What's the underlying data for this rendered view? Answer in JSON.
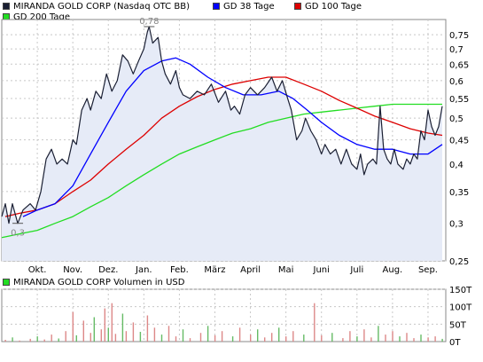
{
  "chart_data": [
    {
      "type": "line",
      "scale": "log",
      "ylim": [
        0.25,
        0.78
      ],
      "y_ticks": [
        0.25,
        0.3,
        0.35,
        0.4,
        0.45,
        0.5,
        0.55,
        0.6,
        0.65,
        0.7,
        0.75
      ],
      "y_tick_labels": [
        "0,25",
        "0,3",
        "0,35",
        "0,4",
        "0,45",
        "0,5",
        "0,55",
        "0,6",
        "0,65",
        "0,7",
        "0,75"
      ],
      "x_tick_labels": [
        "Okt.",
        "Nov.",
        "Dez.",
        "Jan.",
        "Feb.",
        "März",
        "April",
        "Mai",
        "Juni",
        "Juli",
        "Aug.",
        "Sep."
      ],
      "x_tick_months": [
        1,
        2,
        3,
        4,
        5,
        6,
        7,
        8,
        9,
        10,
        11,
        12
      ],
      "x_range_months": [
        0,
        12.5
      ],
      "annotations": [
        {
          "label": "0,78",
          "x_month": 4.15,
          "value": 0.78
        },
        {
          "label": "0,3",
          "x_month": 0.45,
          "value": 0.3
        }
      ],
      "series": [
        {
          "name": "MIRANDA GOLD CORP (Nasdaq OTC BB)",
          "color": "#1a1f33",
          "points": [
            [
              0,
              0.31
            ],
            [
              0.1,
              0.33
            ],
            [
              0.2,
              0.3
            ],
            [
              0.3,
              0.33
            ],
            [
              0.45,
              0.3
            ],
            [
              0.6,
              0.32
            ],
            [
              0.8,
              0.33
            ],
            [
              0.95,
              0.32
            ],
            [
              1.1,
              0.35
            ],
            [
              1.25,
              0.41
            ],
            [
              1.4,
              0.43
            ],
            [
              1.55,
              0.4
            ],
            [
              1.7,
              0.41
            ],
            [
              1.85,
              0.4
            ],
            [
              2.0,
              0.45
            ],
            [
              2.1,
              0.44
            ],
            [
              2.25,
              0.52
            ],
            [
              2.4,
              0.55
            ],
            [
              2.5,
              0.52
            ],
            [
              2.65,
              0.57
            ],
            [
              2.8,
              0.55
            ],
            [
              2.95,
              0.62
            ],
            [
              3.1,
              0.57
            ],
            [
              3.25,
              0.6
            ],
            [
              3.4,
              0.68
            ],
            [
              3.55,
              0.66
            ],
            [
              3.7,
              0.62
            ],
            [
              3.85,
              0.66
            ],
            [
              4.0,
              0.7
            ],
            [
              4.1,
              0.76
            ],
            [
              4.15,
              0.78
            ],
            [
              4.25,
              0.72
            ],
            [
              4.4,
              0.74
            ],
            [
              4.5,
              0.66
            ],
            [
              4.6,
              0.62
            ],
            [
              4.75,
              0.59
            ],
            [
              4.9,
              0.63
            ],
            [
              5.0,
              0.58
            ],
            [
              5.1,
              0.56
            ],
            [
              5.3,
              0.55
            ],
            [
              5.5,
              0.57
            ],
            [
              5.7,
              0.56
            ],
            [
              5.9,
              0.59
            ],
            [
              6.1,
              0.54
            ],
            [
              6.3,
              0.57
            ],
            [
              6.45,
              0.52
            ],
            [
              6.55,
              0.53
            ],
            [
              6.7,
              0.51
            ],
            [
              6.85,
              0.56
            ],
            [
              7.0,
              0.58
            ],
            [
              7.2,
              0.56
            ],
            [
              7.4,
              0.58
            ],
            [
              7.6,
              0.61
            ],
            [
              7.75,
              0.57
            ],
            [
              7.9,
              0.6
            ],
            [
              8.05,
              0.55
            ],
            [
              8.15,
              0.52
            ],
            [
              8.3,
              0.45
            ],
            [
              8.45,
              0.47
            ],
            [
              8.55,
              0.5
            ],
            [
              8.7,
              0.47
            ],
            [
              8.85,
              0.45
            ],
            [
              9.0,
              0.42
            ],
            [
              9.1,
              0.44
            ],
            [
              9.25,
              0.42
            ],
            [
              9.4,
              0.43
            ],
            [
              9.55,
              0.4
            ],
            [
              9.7,
              0.43
            ],
            [
              9.85,
              0.4
            ],
            [
              10.0,
              0.39
            ],
            [
              10.1,
              0.42
            ],
            [
              10.2,
              0.38
            ],
            [
              10.3,
              0.4
            ],
            [
              10.45,
              0.41
            ],
            [
              10.55,
              0.4
            ],
            [
              10.65,
              0.53
            ],
            [
              10.75,
              0.43
            ],
            [
              10.85,
              0.41
            ],
            [
              10.95,
              0.4
            ],
            [
              11.05,
              0.43
            ],
            [
              11.15,
              0.4
            ],
            [
              11.3,
              0.39
            ],
            [
              11.4,
              0.41
            ],
            [
              11.5,
              0.4
            ],
            [
              11.6,
              0.42
            ],
            [
              11.7,
              0.41
            ],
            [
              11.8,
              0.47
            ],
            [
              11.9,
              0.45
            ],
            [
              12.0,
              0.52
            ],
            [
              12.1,
              0.48
            ],
            [
              12.2,
              0.46
            ],
            [
              12.3,
              0.48
            ],
            [
              12.4,
              0.53
            ]
          ]
        },
        {
          "name": "GD 38 Tage",
          "color": "#0000ff",
          "points": [
            [
              0.6,
              0.31
            ],
            [
              1.0,
              0.32
            ],
            [
              1.5,
              0.33
            ],
            [
              2.0,
              0.36
            ],
            [
              2.5,
              0.42
            ],
            [
              3.0,
              0.49
            ],
            [
              3.5,
              0.57
            ],
            [
              4.0,
              0.63
            ],
            [
              4.5,
              0.66
            ],
            [
              4.9,
              0.67
            ],
            [
              5.3,
              0.65
            ],
            [
              5.8,
              0.61
            ],
            [
              6.3,
              0.58
            ],
            [
              6.8,
              0.56
            ],
            [
              7.3,
              0.56
            ],
            [
              7.8,
              0.57
            ],
            [
              8.2,
              0.55
            ],
            [
              8.6,
              0.52
            ],
            [
              9.0,
              0.49
            ],
            [
              9.5,
              0.46
            ],
            [
              10.0,
              0.44
            ],
            [
              10.5,
              0.43
            ],
            [
              11.0,
              0.43
            ],
            [
              11.5,
              0.42
            ],
            [
              12.0,
              0.42
            ],
            [
              12.4,
              0.44
            ]
          ]
        },
        {
          "name": "GD 100 Tage",
          "color": "#dd0000",
          "points": [
            [
              0.1,
              0.31
            ],
            [
              0.5,
              0.315
            ],
            [
              1.0,
              0.32
            ],
            [
              1.5,
              0.33
            ],
            [
              2.0,
              0.35
            ],
            [
              2.5,
              0.37
            ],
            [
              3.0,
              0.4
            ],
            [
              3.5,
              0.43
            ],
            [
              4.0,
              0.46
            ],
            [
              4.5,
              0.5
            ],
            [
              5.0,
              0.53
            ],
            [
              5.5,
              0.555
            ],
            [
              6.0,
              0.575
            ],
            [
              6.5,
              0.59
            ],
            [
              7.0,
              0.6
            ],
            [
              7.5,
              0.61
            ],
            [
              8.0,
              0.61
            ],
            [
              8.5,
              0.59
            ],
            [
              9.0,
              0.57
            ],
            [
              9.5,
              0.545
            ],
            [
              10.0,
              0.525
            ],
            [
              10.5,
              0.505
            ],
            [
              11.0,
              0.49
            ],
            [
              11.5,
              0.475
            ],
            [
              12.0,
              0.465
            ],
            [
              12.4,
              0.46
            ]
          ]
        },
        {
          "name": "GD 200 Tage",
          "color": "#22dd22",
          "points": [
            [
              0,
              0.28
            ],
            [
              0.5,
              0.285
            ],
            [
              1.0,
              0.29
            ],
            [
              1.5,
              0.3
            ],
            [
              2.0,
              0.31
            ],
            [
              2.5,
              0.325
            ],
            [
              3.0,
              0.34
            ],
            [
              3.5,
              0.36
            ],
            [
              4.0,
              0.38
            ],
            [
              4.5,
              0.4
            ],
            [
              5.0,
              0.42
            ],
            [
              5.5,
              0.435
            ],
            [
              6.0,
              0.45
            ],
            [
              6.5,
              0.465
            ],
            [
              7.0,
              0.475
            ],
            [
              7.5,
              0.49
            ],
            [
              8.0,
              0.5
            ],
            [
              8.5,
              0.51
            ],
            [
              9.0,
              0.515
            ],
            [
              9.5,
              0.52
            ],
            [
              10.0,
              0.525
            ],
            [
              10.5,
              0.53
            ],
            [
              11.0,
              0.535
            ],
            [
              11.5,
              0.535
            ],
            [
              12.0,
              0.535
            ],
            [
              12.4,
              0.535
            ]
          ]
        }
      ]
    },
    {
      "type": "bar",
      "title": "MIRANDA GOLD CORP Volumen in USD",
      "y_tick_labels": [
        "150T",
        "100T",
        "50T",
        "0T"
      ],
      "y_ticks": [
        150,
        100,
        50,
        0
      ],
      "ylim": [
        0,
        150
      ],
      "unit": "T",
      "up_color": "#dd8888",
      "down_color": "#66bb66",
      "bars": [
        {
          "x_month": 0.1,
          "value": 5
        },
        {
          "x_month": 0.3,
          "value": 12
        },
        {
          "x_month": 0.5,
          "value": 3
        },
        {
          "x_month": 0.8,
          "value": 8
        },
        {
          "x_month": 1.0,
          "value": 15
        },
        {
          "x_month": 1.2,
          "value": 6
        },
        {
          "x_month": 1.4,
          "value": 20
        },
        {
          "x_month": 1.6,
          "value": 9
        },
        {
          "x_month": 1.8,
          "value": 30
        },
        {
          "x_month": 2.0,
          "value": 85
        },
        {
          "x_month": 2.1,
          "value": 18
        },
        {
          "x_month": 2.3,
          "value": 60
        },
        {
          "x_month": 2.5,
          "value": 25
        },
        {
          "x_month": 2.6,
          "value": 70
        },
        {
          "x_month": 2.8,
          "value": 35
        },
        {
          "x_month": 2.9,
          "value": 95
        },
        {
          "x_month": 3.0,
          "value": 40
        },
        {
          "x_month": 3.1,
          "value": 110
        },
        {
          "x_month": 3.2,
          "value": 22
        },
        {
          "x_month": 3.4,
          "value": 80
        },
        {
          "x_month": 3.5,
          "value": 30
        },
        {
          "x_month": 3.7,
          "value": 55
        },
        {
          "x_month": 3.9,
          "value": 28
        },
        {
          "x_month": 4.1,
          "value": 75
        },
        {
          "x_month": 4.3,
          "value": 40
        },
        {
          "x_month": 4.5,
          "value": 20
        },
        {
          "x_month": 4.7,
          "value": 45
        },
        {
          "x_month": 4.9,
          "value": 15
        },
        {
          "x_month": 5.1,
          "value": 35
        },
        {
          "x_month": 5.3,
          "value": 10
        },
        {
          "x_month": 5.6,
          "value": 25
        },
        {
          "x_month": 5.8,
          "value": 45
        },
        {
          "x_month": 6.0,
          "value": 18
        },
        {
          "x_month": 6.2,
          "value": 30
        },
        {
          "x_month": 6.5,
          "value": 15
        },
        {
          "x_month": 6.7,
          "value": 40
        },
        {
          "x_month": 7.0,
          "value": 20
        },
        {
          "x_month": 7.2,
          "value": 35
        },
        {
          "x_month": 7.4,
          "value": 12
        },
        {
          "x_month": 7.6,
          "value": 25
        },
        {
          "x_month": 7.8,
          "value": 40
        },
        {
          "x_month": 8.0,
          "value": 15
        },
        {
          "x_month": 8.2,
          "value": 30
        },
        {
          "x_month": 8.5,
          "value": 20
        },
        {
          "x_month": 8.8,
          "value": 110
        },
        {
          "x_month": 9.0,
          "value": 18
        },
        {
          "x_month": 9.3,
          "value": 25
        },
        {
          "x_month": 9.6,
          "value": 10
        },
        {
          "x_month": 9.8,
          "value": 30
        },
        {
          "x_month": 10.0,
          "value": 15
        },
        {
          "x_month": 10.2,
          "value": 35
        },
        {
          "x_month": 10.4,
          "value": 12
        },
        {
          "x_month": 10.6,
          "value": 45
        },
        {
          "x_month": 10.8,
          "value": 20
        },
        {
          "x_month": 11.0,
          "value": 30
        },
        {
          "x_month": 11.2,
          "value": 15
        },
        {
          "x_month": 11.4,
          "value": 25
        },
        {
          "x_month": 11.6,
          "value": 10
        },
        {
          "x_month": 11.8,
          "value": 20
        },
        {
          "x_month": 12.0,
          "value": 12
        },
        {
          "x_month": 12.2,
          "value": 15
        },
        {
          "x_month": 12.4,
          "value": 8
        }
      ]
    }
  ]
}
